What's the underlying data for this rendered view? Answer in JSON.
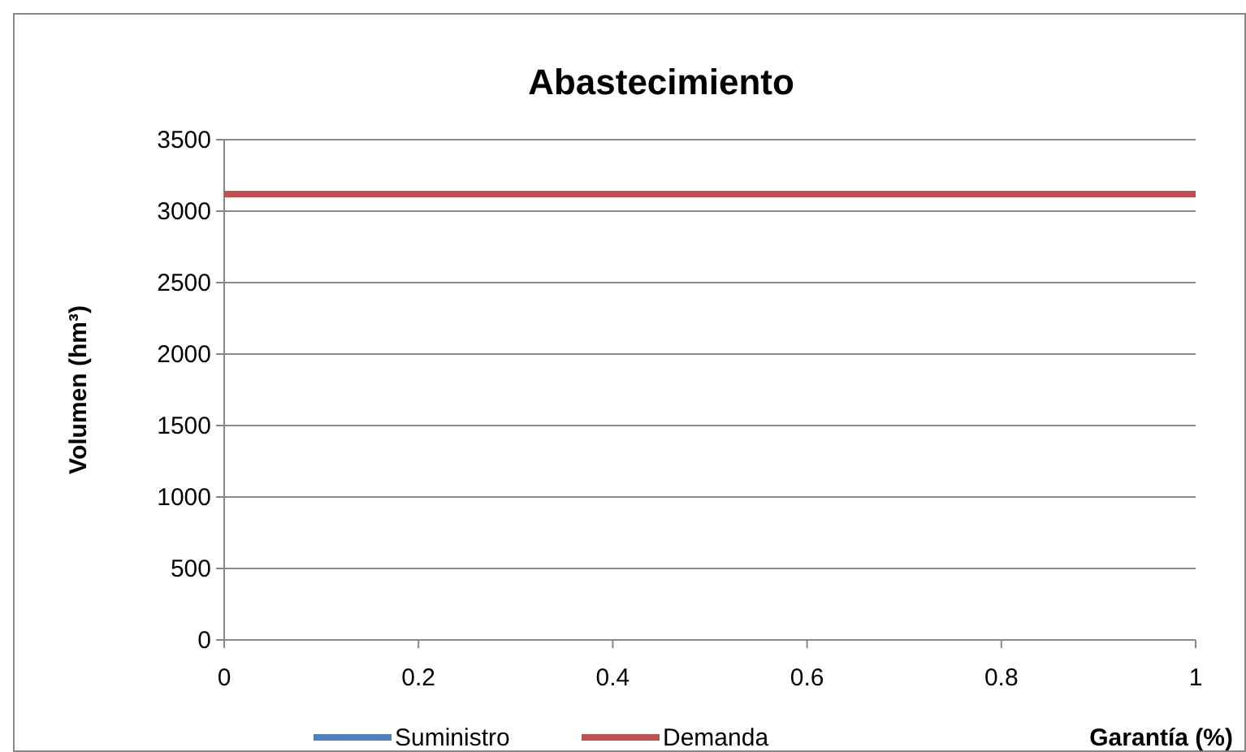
{
  "chart_data": {
    "type": "line",
    "title": "Abastecimiento",
    "xlabel": "Garantía (%)",
    "ylabel": "Volumen (hm³)",
    "x": [
      0,
      1
    ],
    "series": [
      {
        "name": "Suministro",
        "color": "#4f81bd",
        "values": [
          null,
          null
        ]
      },
      {
        "name": "Demanda",
        "color": "#c0504d",
        "values": [
          3120,
          3120
        ]
      }
    ],
    "xlim": [
      0,
      1
    ],
    "xticks": [
      0,
      0.2,
      0.4,
      0.6,
      0.8,
      1
    ],
    "ylim": [
      0,
      3500
    ],
    "yticks": [
      0,
      500,
      1000,
      1500,
      2000,
      2500,
      3000,
      3500
    ],
    "grid": "y",
    "legend": "bottom",
    "marker": "none",
    "line_style": "solid"
  }
}
